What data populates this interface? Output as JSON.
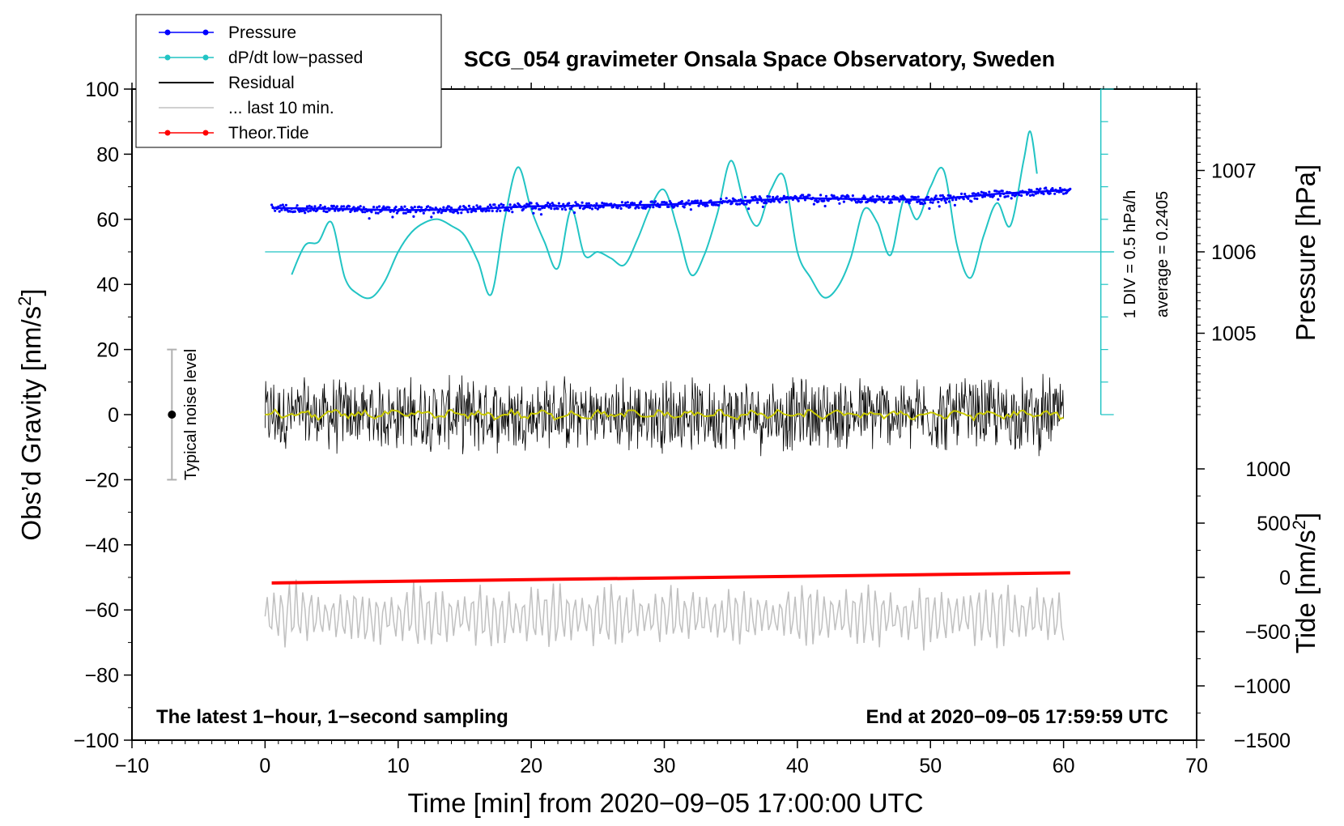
{
  "chart_data": {
    "type": "line",
    "title": "SCG_054 gravimeter Onsala Space Observatory, Sweden",
    "xlabel": "Time [min] from 2020−09−05 17:00:00 UTC",
    "ylabel": "Obs’d Gravity [nm/s",
    "ylabel_sup": "2",
    "ylabel_close": "]",
    "xlim": [
      -10,
      70
    ],
    "ylim": [
      -100,
      100
    ],
    "x_ticks": [
      -10,
      0,
      10,
      20,
      30,
      40,
      50,
      60,
      70
    ],
    "x_tick_labels": [
      "−10",
      "0",
      "10",
      "20",
      "30",
      "40",
      "50",
      "60",
      "70"
    ],
    "y_ticks": [
      -100,
      -80,
      -60,
      -40,
      -20,
      0,
      20,
      40,
      60,
      80,
      100
    ],
    "y_tick_labels": [
      "−100",
      "−80",
      "−60",
      "−40",
      "−20",
      "0",
      "20",
      "40",
      "60",
      "80",
      "100"
    ],
    "pressure_axis": {
      "label": "Pressure [hPa]",
      "ticks": [
        1005,
        1006,
        1007
      ],
      "tick_labels": [
        "1005",
        "1006",
        "1007"
      ],
      "gravity_equiv": [
        25,
        50,
        75
      ]
    },
    "tide_axis": {
      "label": "Tide [nm/s",
      "label_sup": "2",
      "label_close": "]",
      "ticks": [
        -1500,
        -1000,
        -500,
        0,
        500,
        1000
      ],
      "tick_labels": [
        "−1500",
        "−1000",
        "−500",
        "0",
        "500",
        "1000"
      ],
      "gravity_equiv": [
        -100,
        -83.33,
        -66.67,
        -50,
        -33.33,
        -16.67
      ]
    },
    "dpdt_scale": {
      "baseline_gravity": 50,
      "note_line1": "1 DIV = 0.5 hPa/h",
      "note_line2": "average = 0.2405",
      "scale_bar_range": [
        0,
        100
      ]
    },
    "noise_bar": {
      "x": -7,
      "center": 0,
      "range": [
        -20,
        20
      ],
      "label": "Typical noise level"
    },
    "footer_left": "The latest 1−hour, 1−second sampling",
    "footer_right": "End at 2020−09−05 17:59:59 UTC",
    "legend": [
      {
        "name": "Pressure",
        "color": "#0000ff",
        "marker": true
      },
      {
        "name": "dP/dt low−passed",
        "color": "#22c4c4",
        "marker": true
      },
      {
        "name": "Residual",
        "color": "#000000",
        "marker": false
      },
      {
        "name": "... last 10 min.",
        "color": "#c0c0c0",
        "marker": false
      },
      {
        "name": "Theor.Tide",
        "color": "#ff0000",
        "marker": true
      }
    ],
    "series": [
      {
        "name": "Pressure",
        "color": "#0000ff",
        "x": [
          0.5,
          5,
          10,
          15,
          20,
          25,
          30,
          35,
          40,
          45,
          50,
          55,
          60.5
        ],
        "values": [
          63.5,
          63.2,
          62.8,
          63.0,
          64.0,
          64.2,
          64.5,
          65.5,
          66.5,
          66.2,
          66.0,
          67.8,
          69.0
        ]
      },
      {
        "name": "dP/dt low−passed",
        "color": "#22c4c4",
        "x": [
          2,
          3,
          4,
          5,
          6,
          7,
          8,
          9,
          10,
          11,
          12,
          13,
          14,
          15,
          16,
          17,
          18,
          19,
          20,
          21,
          22,
          23,
          24,
          25,
          26,
          27,
          28,
          29,
          30,
          31,
          32,
          33,
          34,
          35,
          36,
          37,
          38,
          39,
          40,
          41,
          42,
          43,
          44,
          45,
          46,
          47,
          48,
          49,
          50,
          51,
          52,
          53,
          54,
          55,
          56,
          57,
          57.5,
          58
        ],
        "values": [
          43,
          52,
          53,
          59,
          42,
          37,
          36,
          41,
          50,
          56,
          59,
          60,
          58,
          55,
          47,
          37,
          60,
          76,
          63,
          53,
          45,
          63,
          49,
          50,
          48,
          46,
          54,
          64,
          69,
          57,
          43,
          49,
          62,
          78,
          65,
          58,
          69,
          73,
          50,
          42,
          36,
          39,
          48,
          63,
          59,
          49,
          66,
          60,
          70,
          75,
          52,
          42,
          55,
          65,
          58,
          78,
          87,
          74
        ]
      },
      {
        "name": "Residual",
        "color": "#000000",
        "x": [
          0,
          60
        ],
        "values": [
          0,
          0
        ],
        "envelope": 13
      },
      {
        "name": "... last 10 min.",
        "color": "#c0c0c0",
        "x": [
          0,
          60
        ],
        "values": [
          -62,
          -62
        ],
        "envelope": 9
      },
      {
        "name": "Theor.Tide",
        "color": "#ff0000",
        "x": [
          0.5,
          60.5
        ],
        "values": [
          -51.7,
          -48.6
        ]
      }
    ]
  }
}
